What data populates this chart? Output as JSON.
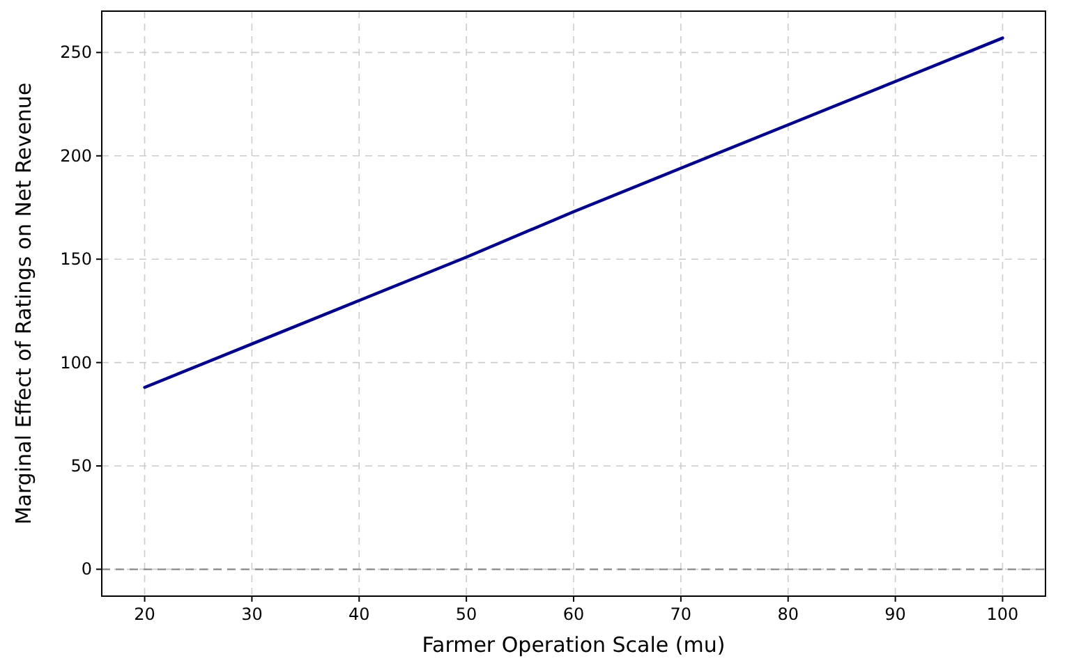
{
  "chart_data": {
    "type": "line",
    "xlabel": "Farmer Operation Scale (mu)",
    "ylabel": "Marginal Effect of Ratings on Net Revenue",
    "x": [
      20,
      30,
      40,
      50,
      60,
      70,
      80,
      90,
      100
    ],
    "series": [
      {
        "color": "#00008b",
        "values": [
          88,
          109,
          130,
          151,
          173,
          194,
          215,
          236,
          257
        ]
      }
    ],
    "xlim": [
      16,
      104
    ],
    "ylim": [
      -13,
      270
    ],
    "xticks": [
      20,
      30,
      40,
      50,
      60,
      70,
      80,
      90,
      100
    ],
    "yticks": [
      0,
      50,
      100,
      150,
      200,
      250
    ],
    "grid": true,
    "line_style": "solid",
    "marker": "none",
    "ref_lines": [
      {
        "axis": "y",
        "value": 0,
        "color": "#808080",
        "line_style": "dashed"
      }
    ]
  }
}
